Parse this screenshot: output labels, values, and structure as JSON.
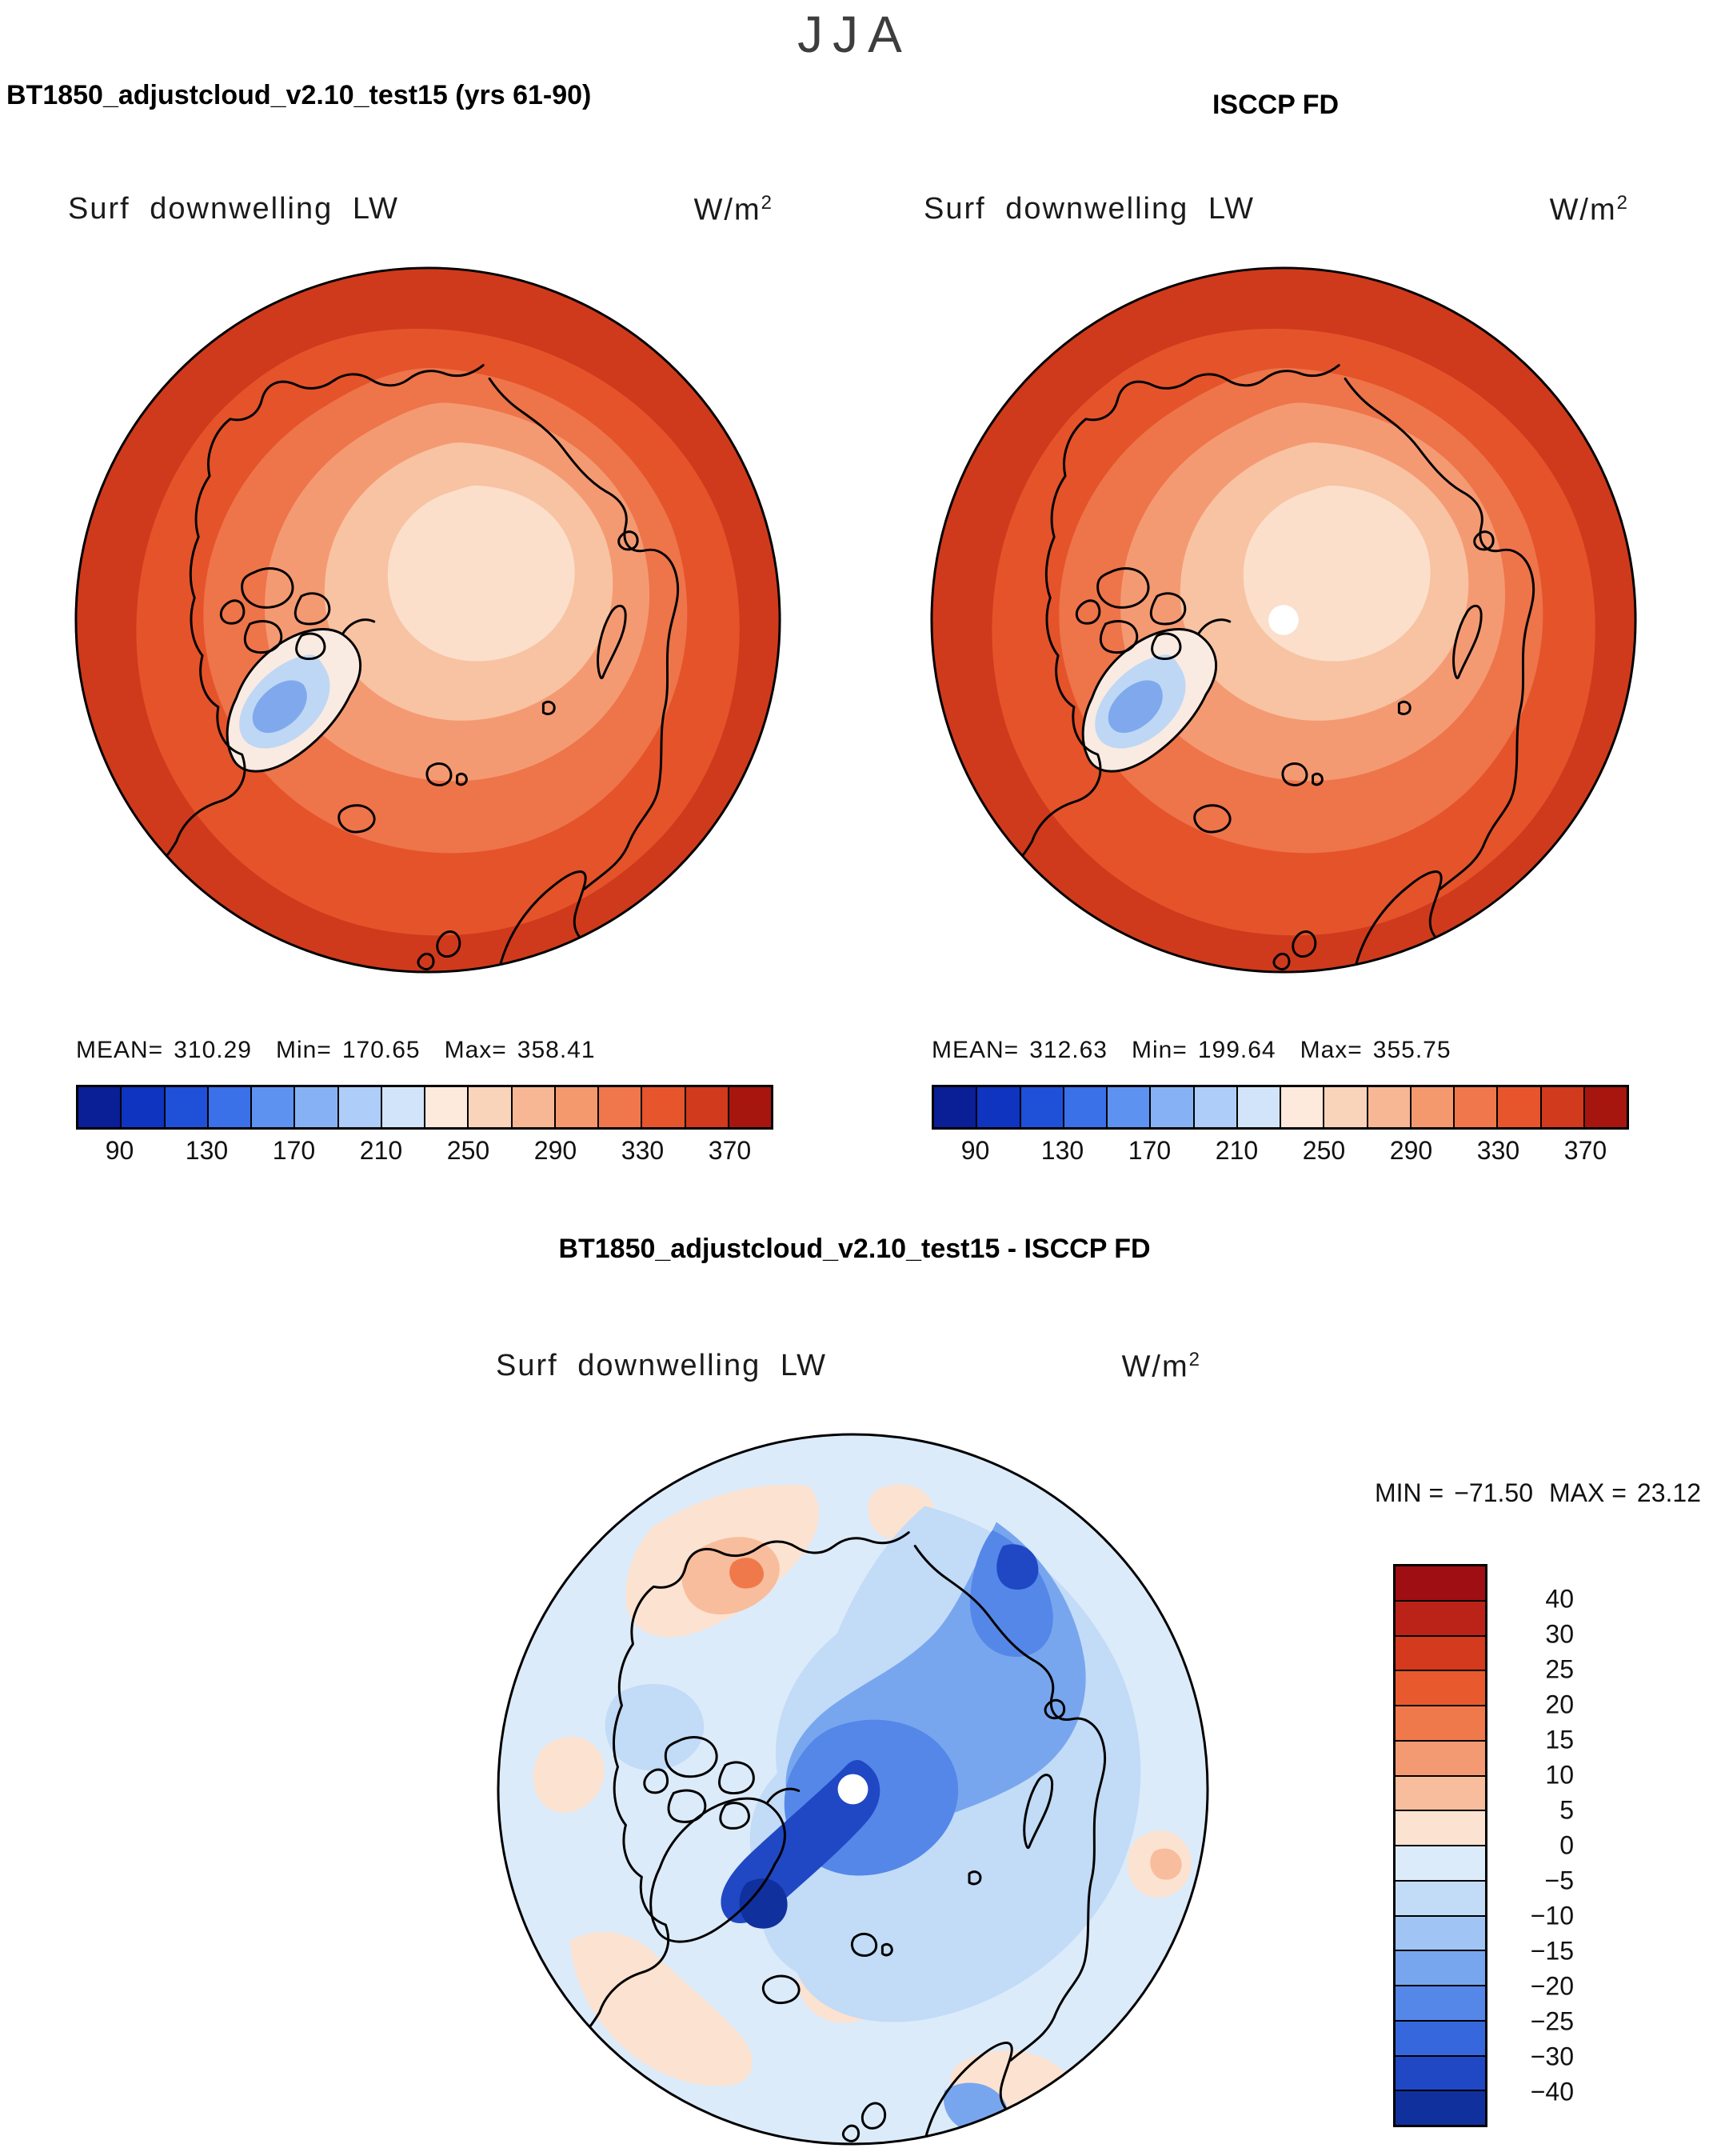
{
  "page": {
    "season": "JJA"
  },
  "model_panel": {
    "title": "BT1850_adjustcloud_v2.10_test15 (yrs 61-90)",
    "field": "Surf downwelling LW",
    "units_base": "W/m",
    "units_exp": "2",
    "mean_label": "MEAN=",
    "mean": "310.29",
    "min_label": "Min=",
    "min": "170.65",
    "max_label": "Max=",
    "max": "358.41"
  },
  "obs_panel": {
    "title": "ISCCP FD",
    "field": "Surf downwelling LW",
    "units_base": "W/m",
    "units_exp": "2",
    "mean_label": "MEAN=",
    "mean": "312.63",
    "min_label": "Min=",
    "min": "199.64",
    "max_label": "Max=",
    "max": "355.75"
  },
  "diff_panel": {
    "title": "BT1850_adjustcloud_v2.10_test15 - ISCCP FD",
    "field": "Surf downwelling LW",
    "units_base": "W/m",
    "units_exp": "2",
    "min_label": "MIN =",
    "min": "−71.50",
    "max_label": "MAX =",
    "max": "23.12"
  },
  "abs_colorbar": {
    "orientation": "horizontal",
    "ticks": [
      "90",
      "130",
      "170",
      "210",
      "250",
      "290",
      "330",
      "370"
    ],
    "colors": [
      "#0a1e96",
      "#0f34c0",
      "#1e50d8",
      "#3a70e8",
      "#5e92f0",
      "#86b2f5",
      "#aecdf8",
      "#d2e4fa",
      "#fdeadd",
      "#fad4ba",
      "#f7b794",
      "#f4986e",
      "#ef774b",
      "#e6552c",
      "#d13a1c",
      "#a6150e"
    ]
  },
  "diff_colorbar": {
    "orientation": "vertical",
    "labels": [
      "40",
      "30",
      "25",
      "20",
      "15",
      "10",
      "5",
      "0",
      "−5",
      "−10",
      "−15",
      "−20",
      "−25",
      "−30",
      "−40"
    ],
    "colors": [
      "#9f0e12",
      "#bc2318",
      "#d43a1e",
      "#e85a2e",
      "#f0794c",
      "#f49a72",
      "#f8bd9c",
      "#fce2d0",
      "#dcebfa",
      "#c2dbf7",
      "#a0c4f3",
      "#78a6ee",
      "#5487e8",
      "#3767dc",
      "#2048c4",
      "#10309e"
    ]
  },
  "chart_data": [
    {
      "type": "heatmap",
      "title": "BT1850_adjustcloud_v2.10_test15 (yrs 61-90)",
      "subtitle": "Surf downwelling LW",
      "units": "W/m^2",
      "season": "JJA",
      "projection": "north polar stereographic",
      "stats": {
        "mean": 310.29,
        "min": 170.65,
        "max": 358.41
      },
      "colorbar_ticks": [
        90,
        130,
        170,
        210,
        250,
        290,
        330,
        370
      ],
      "colorbar_orientation": "horizontal",
      "legend_position": "bottom"
    },
    {
      "type": "heatmap",
      "title": "ISCCP FD",
      "subtitle": "Surf downwelling LW",
      "units": "W/m^2",
      "season": "JJA",
      "projection": "north polar stereographic",
      "stats": {
        "mean": 312.63,
        "min": 199.64,
        "max": 355.75
      },
      "colorbar_ticks": [
        90,
        130,
        170,
        210,
        250,
        290,
        330,
        370
      ],
      "colorbar_orientation": "horizontal",
      "legend_position": "bottom"
    },
    {
      "type": "heatmap",
      "title": "BT1850_adjustcloud_v2.10_test15 - ISCCP FD",
      "subtitle": "Surf downwelling LW",
      "units": "W/m^2",
      "season": "JJA",
      "projection": "north polar stereographic",
      "stats": {
        "min": -71.5,
        "max": 23.12
      },
      "colorbar_ticks": [
        40,
        30,
        25,
        20,
        15,
        10,
        5,
        0,
        -5,
        -10,
        -15,
        -20,
        -25,
        -30,
        -40
      ],
      "colorbar_orientation": "vertical",
      "legend_position": "right"
    }
  ]
}
